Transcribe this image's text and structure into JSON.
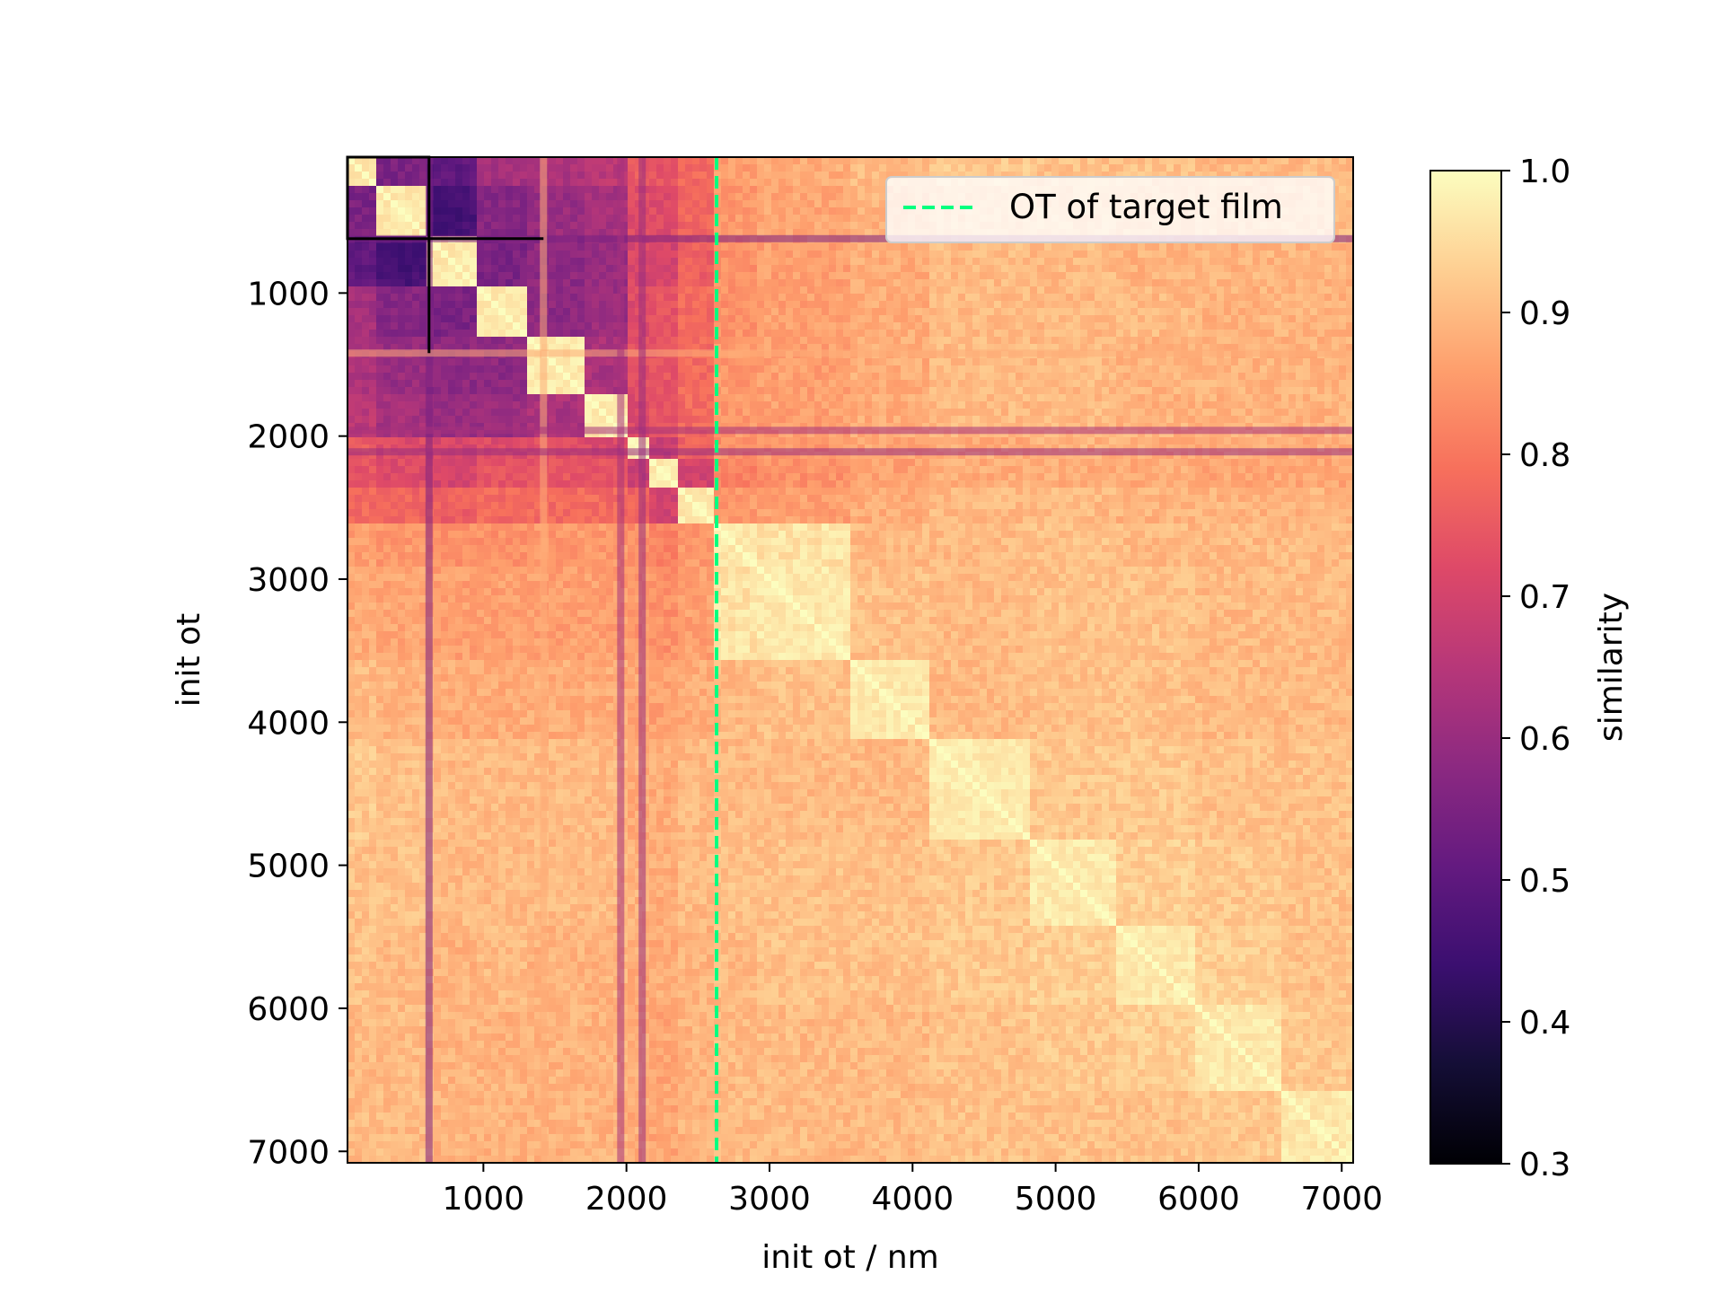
{
  "chart_data": {
    "type": "heatmap",
    "title": "",
    "xlabel": "init ot / nm",
    "ylabel": "init ot",
    "x_range": [
      50,
      7080
    ],
    "y_range": [
      50,
      7080
    ],
    "y_inverted": true,
    "x_ticks": [
      "1000",
      "2000",
      "3000",
      "4000",
      "5000",
      "6000",
      "7000"
    ],
    "y_ticks": [
      "1000",
      "2000",
      "3000",
      "4000",
      "5000",
      "6000",
      "7000"
    ],
    "colormap": "magma",
    "colorbar": {
      "label": "similarity",
      "min": 0.3,
      "max": 1.0,
      "ticks": [
        "0.3",
        "0.4",
        "0.5",
        "0.6",
        "0.7",
        "0.8",
        "0.9",
        "1.0"
      ]
    },
    "marker_line": {
      "x": 2630,
      "color": "#00ff7f",
      "style": "dashed",
      "label": "OT of target film"
    },
    "legend_position": "top-right",
    "highlight_box": {
      "x": [
        50,
        620
      ],
      "y": [
        50,
        620
      ],
      "color": "#000000"
    },
    "block_boundaries": [
      50,
      250,
      620,
      950,
      1300,
      1700,
      2000,
      2150,
      2350,
      2630,
      2900,
      3550,
      4100,
      4800,
      5400,
      6000,
      6600,
      7080
    ],
    "block_means": [
      [
        1.0,
        0.55,
        0.5,
        0.62,
        0.63,
        0.66,
        0.75,
        0.74,
        0.78,
        0.86,
        0.88,
        0.9,
        0.92,
        0.91,
        0.91,
        0.9,
        0.9
      ],
      [
        0.55,
        1.0,
        0.46,
        0.57,
        0.6,
        0.62,
        0.72,
        0.72,
        0.77,
        0.85,
        0.87,
        0.89,
        0.91,
        0.91,
        0.9,
        0.9,
        0.9
      ],
      [
        0.5,
        0.46,
        1.0,
        0.55,
        0.58,
        0.6,
        0.71,
        0.7,
        0.76,
        0.84,
        0.86,
        0.88,
        0.9,
        0.9,
        0.89,
        0.89,
        0.89
      ],
      [
        0.62,
        0.57,
        0.55,
        1.0,
        0.58,
        0.6,
        0.72,
        0.74,
        0.78,
        0.84,
        0.86,
        0.88,
        0.9,
        0.9,
        0.9,
        0.89,
        0.89
      ],
      [
        0.63,
        0.6,
        0.58,
        0.58,
        1.0,
        0.63,
        0.73,
        0.74,
        0.78,
        0.85,
        0.86,
        0.88,
        0.9,
        0.9,
        0.89,
        0.89,
        0.89
      ],
      [
        0.66,
        0.62,
        0.6,
        0.6,
        0.63,
        1.0,
        0.72,
        0.74,
        0.78,
        0.85,
        0.86,
        0.88,
        0.9,
        0.9,
        0.89,
        0.89,
        0.89
      ],
      [
        0.75,
        0.72,
        0.71,
        0.72,
        0.73,
        0.72,
        1.0,
        0.68,
        0.77,
        0.84,
        0.85,
        0.87,
        0.88,
        0.89,
        0.88,
        0.88,
        0.88
      ],
      [
        0.74,
        0.72,
        0.7,
        0.74,
        0.74,
        0.74,
        0.68,
        1.0,
        0.7,
        0.82,
        0.84,
        0.86,
        0.88,
        0.88,
        0.88,
        0.87,
        0.87
      ],
      [
        0.78,
        0.77,
        0.76,
        0.78,
        0.78,
        0.78,
        0.77,
        0.7,
        1.0,
        0.85,
        0.86,
        0.88,
        0.9,
        0.9,
        0.89,
        0.89,
        0.89
      ],
      [
        0.86,
        0.85,
        0.84,
        0.84,
        0.85,
        0.85,
        0.84,
        0.82,
        0.85,
        1.0,
        0.96,
        0.9,
        0.9,
        0.91,
        0.9,
        0.9,
        0.9
      ],
      [
        0.88,
        0.87,
        0.86,
        0.86,
        0.86,
        0.86,
        0.85,
        0.84,
        0.86,
        0.96,
        1.0,
        0.91,
        0.9,
        0.91,
        0.91,
        0.9,
        0.9
      ],
      [
        0.9,
        0.89,
        0.88,
        0.88,
        0.88,
        0.88,
        0.87,
        0.86,
        0.88,
        0.9,
        0.91,
        1.0,
        0.9,
        0.91,
        0.91,
        0.9,
        0.9
      ],
      [
        0.92,
        0.91,
        0.9,
        0.9,
        0.9,
        0.9,
        0.88,
        0.88,
        0.9,
        0.9,
        0.9,
        0.9,
        1.0,
        0.92,
        0.92,
        0.91,
        0.91
      ],
      [
        0.91,
        0.91,
        0.9,
        0.9,
        0.9,
        0.9,
        0.89,
        0.88,
        0.9,
        0.91,
        0.91,
        0.91,
        0.92,
        1.0,
        0.93,
        0.92,
        0.91
      ],
      [
        0.91,
        0.9,
        0.89,
        0.9,
        0.89,
        0.89,
        0.88,
        0.88,
        0.89,
        0.9,
        0.91,
        0.91,
        0.92,
        0.93,
        1.0,
        0.93,
        0.91
      ],
      [
        0.9,
        0.9,
        0.89,
        0.89,
        0.89,
        0.89,
        0.88,
        0.87,
        0.89,
        0.9,
        0.9,
        0.9,
        0.91,
        0.92,
        0.93,
        1.0,
        0.92
      ],
      [
        0.9,
        0.9,
        0.89,
        0.89,
        0.89,
        0.89,
        0.88,
        0.87,
        0.89,
        0.9,
        0.9,
        0.9,
        0.91,
        0.91,
        0.91,
        0.92,
        1.0
      ]
    ],
    "dark_stripes": [
      {
        "axis": "both",
        "at": 620,
        "value": 0.55
      },
      {
        "axis": "both",
        "at": 1420,
        "value": 0.88
      },
      {
        "axis": "both",
        "at": 1960,
        "value": 0.62
      },
      {
        "axis": "both",
        "at": 2110,
        "value": 0.6
      }
    ]
  }
}
